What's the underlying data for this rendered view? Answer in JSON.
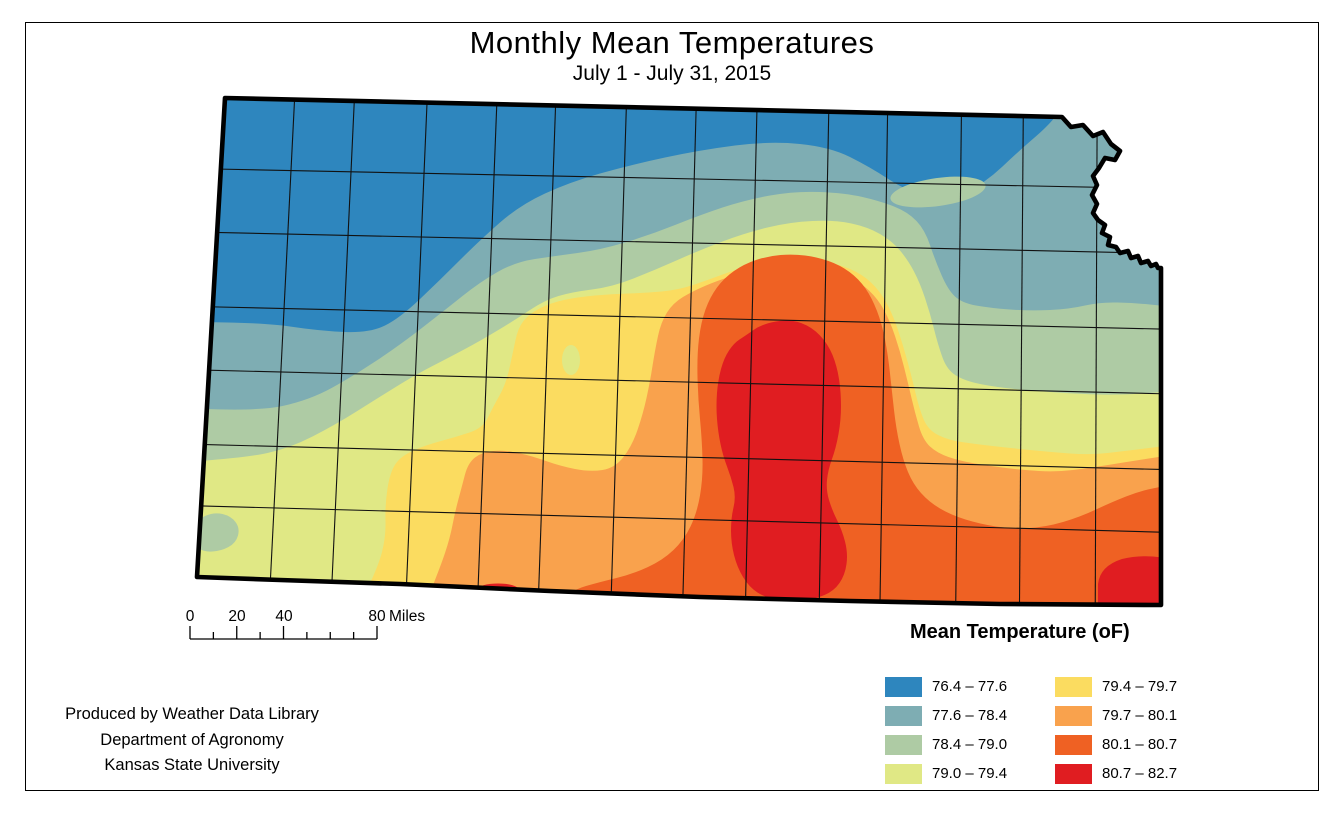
{
  "title": "Monthly Mean Temperatures",
  "subtitle": "July 1 - July 31, 2015",
  "legend": {
    "title": "Mean Temperature (oF)",
    "items": [
      {
        "range": "76.4 – 77.6",
        "color": "#2E86BE"
      },
      {
        "range": "77.6 – 78.4",
        "color": "#7EADB3"
      },
      {
        "range": "78.4 – 79.0",
        "color": "#AECBA4"
      },
      {
        "range": "79.0 – 79.4",
        "color": "#E0E885"
      },
      {
        "range": "79.4 – 79.7",
        "color": "#FBDC60"
      },
      {
        "range": "79.7 – 80.1",
        "color": "#F9A24D"
      },
      {
        "range": "80.1 – 80.7",
        "color": "#EF6123"
      },
      {
        "range": "80.7 – 82.7",
        "color": "#E01D21"
      }
    ]
  },
  "scalebar": {
    "labels": [
      "0",
      "20",
      "40",
      "80"
    ],
    "unit": "Miles"
  },
  "credits": {
    "lines": [
      "Produced by Weather Data Library",
      "Department of Agronomy",
      "Kansas State University"
    ]
  }
}
